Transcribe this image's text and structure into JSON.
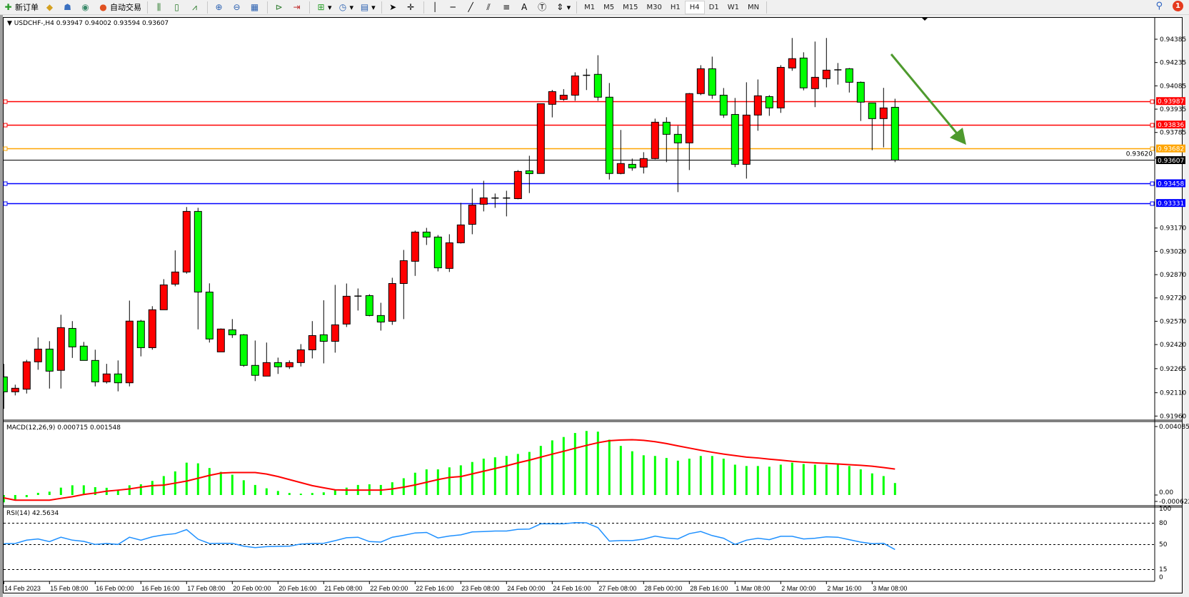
{
  "toolbar": {
    "new_order": "新订单",
    "auto_trading": "自动交易",
    "icons": [
      "new-order-icon",
      "market-watch-icon",
      "navigator-icon",
      "signals-icon",
      "auto-trading-icon",
      "bar-chart-icon",
      "candlestick-icon",
      "line-chart-icon",
      "zoom-in-icon",
      "zoom-out-icon",
      "tile-windows-icon",
      "autoscroll-icon",
      "chart-shift-icon",
      "indicators-icon",
      "periods-icon",
      "templates-icon",
      "cursor-icon",
      "crosshair-icon",
      "vertical-line-icon",
      "horizontal-line-icon",
      "trendline-icon",
      "equidistant-channel-icon",
      "fibonacci-icon",
      "text-icon",
      "text-label-icon",
      "arrows-icon"
    ],
    "text_tool": "A",
    "timeframes": [
      "M1",
      "M5",
      "M15",
      "M30",
      "H1",
      "H4",
      "D1",
      "W1",
      "MN"
    ],
    "active_timeframe": "H4",
    "notifications_count": "1"
  },
  "chart": {
    "header": "USDCHF-,H4  0.93947 0.94002 0.93594 0.93607",
    "symbol": "USDCHF-",
    "timeframe": "H4",
    "bull_color": "#ff0000",
    "bear_color": "#00ff00",
    "price_ticks": [
      "0.94385",
      "0.94235",
      "0.94085",
      "0.93935",
      "0.93785",
      "0.93620",
      "0.93170",
      "0.93020",
      "0.92870",
      "0.92720",
      "0.92570",
      "0.92420",
      "0.92265",
      "0.92110",
      "0.91960"
    ],
    "levels": [
      {
        "price": "0.93987",
        "color": "#ff0000"
      },
      {
        "price": "0.93836",
        "color": "#ff0000"
      },
      {
        "price": "0.93682",
        "color": "#ffa500"
      },
      {
        "price": "0.93458",
        "color": "#0000ff"
      },
      {
        "price": "0.93331",
        "color": "#0000ff"
      }
    ],
    "current_price": "0.93607",
    "arrow_color": "#4e9a2e",
    "time_labels": [
      "14 Feb 2023",
      "15 Feb 08:00",
      "16 Feb 00:00",
      "16 Feb 16:00",
      "17 Feb 08:00",
      "20 Feb 00:00",
      "20 Feb 16:00",
      "21 Feb 08:00",
      "22 Feb 00:00",
      "22 Feb 16:00",
      "23 Feb 08:00",
      "24 Feb 00:00",
      "24 Feb 16:00",
      "27 Feb 08:00",
      "28 Feb 00:00",
      "28 Feb 16:00",
      "1 Mar 08:00",
      "2 Mar 00:00",
      "2 Mar 16:00",
      "3 Mar 08:00"
    ]
  },
  "chart_data": {
    "type": "candlestick",
    "ohlc_fields": [
      "open",
      "high",
      "low",
      "close"
    ],
    "candles": [
      [
        0.92212,
        0.92296,
        0.92006,
        0.92116
      ],
      [
        0.92116,
        0.92162,
        0.92093,
        0.92139
      ],
      [
        0.92133,
        0.92322,
        0.92105,
        0.92309
      ],
      [
        0.92309,
        0.92466,
        0.92258,
        0.92391
      ],
      [
        0.92391,
        0.92442,
        0.92137,
        0.92249
      ],
      [
        0.92254,
        0.92612,
        0.92137,
        0.92529
      ],
      [
        0.92524,
        0.92571,
        0.92334,
        0.92405
      ],
      [
        0.9241,
        0.92437,
        0.92318,
        0.92318
      ],
      [
        0.92318,
        0.92387,
        0.92151,
        0.9218
      ],
      [
        0.9218,
        0.92296,
        0.92169,
        0.92231
      ],
      [
        0.92231,
        0.92318,
        0.92119,
        0.92174
      ],
      [
        0.92174,
        0.92703,
        0.92151,
        0.92571
      ],
      [
        0.92571,
        0.92579,
        0.92344,
        0.924
      ],
      [
        0.924,
        0.92667,
        0.92387,
        0.92644
      ],
      [
        0.92644,
        0.92841,
        0.92644,
        0.92804
      ],
      [
        0.92809,
        0.93026,
        0.92795,
        0.92887
      ],
      [
        0.92887,
        0.93305,
        0.92876,
        0.93277
      ],
      [
        0.93277,
        0.933,
        0.92518,
        0.92758
      ],
      [
        0.92758,
        0.92814,
        0.92433,
        0.92456
      ],
      [
        0.92373,
        0.92524,
        0.92373,
        0.9252
      ],
      [
        0.92515,
        0.92584,
        0.92463,
        0.92483
      ],
      [
        0.92483,
        0.92488,
        0.92277,
        0.92286
      ],
      [
        0.92286,
        0.92446,
        0.92185,
        0.92222
      ],
      [
        0.92217,
        0.92433,
        0.92217,
        0.92304
      ],
      [
        0.92304,
        0.92336,
        0.92231,
        0.92277
      ],
      [
        0.92277,
        0.92318,
        0.92263,
        0.92304
      ],
      [
        0.92304,
        0.92423,
        0.92279,
        0.92386
      ],
      [
        0.92386,
        0.92571,
        0.92331,
        0.92478
      ],
      [
        0.92483,
        0.92705,
        0.92299,
        0.92441
      ],
      [
        0.92441,
        0.92804,
        0.92368,
        0.92547
      ],
      [
        0.92552,
        0.92813,
        0.92533,
        0.92731
      ],
      [
        0.92732,
        0.92781,
        0.92639,
        0.92731
      ],
      [
        0.92735,
        0.92744,
        0.92602,
        0.92607
      ],
      [
        0.92607,
        0.92689,
        0.9251,
        0.92565
      ],
      [
        0.9257,
        0.9285,
        0.92547,
        0.92813
      ],
      [
        0.92813,
        0.93029,
        0.92584,
        0.9296
      ],
      [
        0.92956,
        0.93153,
        0.92862,
        0.93144
      ],
      [
        0.93144,
        0.93171,
        0.93061,
        0.93112
      ],
      [
        0.93112,
        0.93125,
        0.92891,
        0.92914
      ],
      [
        0.9291,
        0.9313,
        0.92887,
        0.93075
      ],
      [
        0.93075,
        0.93332,
        0.9307,
        0.9319
      ],
      [
        0.93194,
        0.93424,
        0.9313,
        0.93318
      ],
      [
        0.93323,
        0.93474,
        0.93277,
        0.93364
      ],
      [
        0.93363,
        0.93392,
        0.933,
        0.93362
      ],
      [
        0.93362,
        0.9341,
        0.93245,
        0.93363
      ],
      [
        0.93359,
        0.93543,
        0.93355,
        0.93534
      ],
      [
        0.93538,
        0.93635,
        0.93395,
        0.9352
      ],
      [
        0.93521,
        0.9397,
        0.93521,
        0.9397
      ],
      [
        0.93966,
        0.94059,
        0.93882,
        0.94048
      ],
      [
        0.93998,
        0.94064,
        0.93989,
        0.94025
      ],
      [
        0.94025,
        0.94172,
        0.93989,
        0.94149
      ],
      [
        0.94152,
        0.94195,
        0.94058,
        0.94153
      ],
      [
        0.94159,
        0.94282,
        0.93989,
        0.94012
      ],
      [
        0.94012,
        0.94103,
        0.93482,
        0.93521
      ],
      [
        0.93521,
        0.93801,
        0.93516,
        0.93585
      ],
      [
        0.9358,
        0.93617,
        0.93539,
        0.93557
      ],
      [
        0.93562,
        0.93658,
        0.93521,
        0.93617
      ],
      [
        0.93617,
        0.93874,
        0.93612,
        0.93851
      ],
      [
        0.93851,
        0.93883,
        0.93594,
        0.93773
      ],
      [
        0.93773,
        0.93828,
        0.93401,
        0.93718
      ],
      [
        0.93718,
        0.94039,
        0.93543,
        0.94035
      ],
      [
        0.94035,
        0.94218,
        0.94025,
        0.94195
      ],
      [
        0.94195,
        0.94273,
        0.94001,
        0.94025
      ],
      [
        0.94025,
        0.94071,
        0.93879,
        0.93897
      ],
      [
        0.93901,
        0.94007,
        0.93562,
        0.9358
      ],
      [
        0.9358,
        0.94108,
        0.93488,
        0.93897
      ],
      [
        0.93897,
        0.94126,
        0.93796,
        0.94021
      ],
      [
        0.94016,
        0.94025,
        0.93892,
        0.93943
      ],
      [
        0.93943,
        0.94218,
        0.93911,
        0.94204
      ],
      [
        0.942,
        0.94393,
        0.94182,
        0.9426
      ],
      [
        0.94264,
        0.94301,
        0.94056,
        0.94072
      ],
      [
        0.94067,
        0.9437,
        0.93948,
        0.9414
      ],
      [
        0.94131,
        0.94393,
        0.94075,
        0.94186
      ],
      [
        0.94188,
        0.94232,
        0.94093,
        0.94187
      ],
      [
        0.94195,
        0.942,
        0.94042,
        0.94108
      ],
      [
        0.94108,
        0.94113,
        0.93859,
        0.9398
      ],
      [
        0.93975,
        0.93975,
        0.93671,
        0.93874
      ],
      [
        0.93874,
        0.94072,
        0.93689,
        0.93943
      ],
      [
        0.93947,
        0.94002,
        0.93594,
        0.93607
      ]
    ],
    "ylim": [
      0.9196,
      0.94385
    ],
    "macd": {
      "label": "MACD(12,26,9) 0.000715 0.001548",
      "ticks": [
        "0.004085",
        "0.00",
        "-0.000622"
      ],
      "ylim": [
        -0.000622,
        0.004085
      ],
      "histogram_color": "#00ff00",
      "signal_color": "#ff0000",
      "histogram": [
        -0.00044,
        -0.00027,
        -0.00013,
        0.00013,
        0.0002,
        0.00044,
        0.00058,
        0.00058,
        0.00047,
        0.00043,
        0.00029,
        0.00058,
        0.00064,
        0.00084,
        0.00113,
        0.00141,
        0.00193,
        0.00189,
        0.00161,
        0.00138,
        0.00121,
        0.00088,
        0.0006,
        0.0004,
        0.00024,
        0.00012,
        8e-05,
        0.00012,
        0.00016,
        0.00034,
        0.00044,
        0.0006,
        0.00064,
        0.0006,
        0.00076,
        0.001,
        0.00133,
        0.00153,
        0.00153,
        0.00165,
        0.00177,
        0.00197,
        0.00217,
        0.00225,
        0.00233,
        0.00245,
        0.00257,
        0.00293,
        0.00326,
        0.00346,
        0.0037,
        0.00382,
        0.00378,
        0.0033,
        0.00293,
        0.00261,
        0.00237,
        0.00233,
        0.00221,
        0.00205,
        0.00217,
        0.00233,
        0.00233,
        0.00217,
        0.00181,
        0.00173,
        0.00173,
        0.00169,
        0.00181,
        0.00193,
        0.00185,
        0.00181,
        0.00181,
        0.00181,
        0.00173,
        0.00153,
        0.00129,
        0.00113,
        0.000715
      ],
      "signal": [
        -0.00017,
        -0.00031,
        -0.00031,
        -0.00031,
        -0.00031,
        -0.0002,
        -0.0001,
        3e-05,
        0.00012,
        0.00023,
        0.00029,
        0.00036,
        0.00047,
        0.00056,
        0.00059,
        0.00071,
        0.00083,
        0.001,
        0.00117,
        0.00131,
        0.00134,
        0.00134,
        0.00134,
        0.00125,
        0.0011,
        0.00092,
        0.00074,
        0.00056,
        0.00043,
        0.00031,
        0.00029,
        0.00029,
        0.00029,
        0.00029,
        0.00036,
        0.00047,
        0.0006,
        0.00076,
        0.00092,
        0.00105,
        0.0011,
        0.00126,
        0.00142,
        0.00158,
        0.00174,
        0.00192,
        0.00208,
        0.00226,
        0.00244,
        0.00261,
        0.00279,
        0.00296,
        0.00312,
        0.00324,
        0.00328,
        0.0033,
        0.00326,
        0.00318,
        0.00307,
        0.00293,
        0.0028,
        0.00267,
        0.00255,
        0.00244,
        0.00235,
        0.00226,
        0.00221,
        0.00214,
        0.00208,
        0.00201,
        0.00196,
        0.00192,
        0.00189,
        0.00185,
        0.00181,
        0.00177,
        0.00172,
        0.00164,
        0.001548
      ]
    },
    "rsi": {
      "label": "RSI(14) 42.5634",
      "ticks": [
        "100",
        "80",
        "50",
        "15",
        "0"
      ],
      "levels": [
        80,
        50,
        15
      ],
      "ylim": [
        0,
        100
      ],
      "color": "#1e90ff",
      "values": [
        50.7,
        51,
        55.7,
        57.4,
        53.7,
        59.8,
        55.7,
        54,
        49.7,
        51,
        49.7,
        59.8,
        55.7,
        60.4,
        63.1,
        64.8,
        70.5,
        57.1,
        51,
        51.3,
        51.3,
        47.3,
        45.3,
        46.6,
        47,
        47.3,
        50.3,
        51,
        51.3,
        55,
        59.1,
        59.8,
        53.7,
        53,
        59.8,
        62.5,
        65.8,
        66.5,
        58.8,
        61.5,
        63.1,
        67.2,
        67.8,
        68.5,
        68.5,
        70.9,
        71.2,
        78.6,
        78.6,
        78.6,
        80.3,
        80,
        73.2,
        54.4,
        55.1,
        55.1,
        57.1,
        61.4,
        58.8,
        57.4,
        64.8,
        67.8,
        62.1,
        58.4,
        49.7,
        55.7,
        58.4,
        56.4,
        61.1,
        61.1,
        57.4,
        58.4,
        60.4,
        59.8,
        56.4,
        53,
        50.7,
        51.3,
        42.56
      ]
    }
  }
}
